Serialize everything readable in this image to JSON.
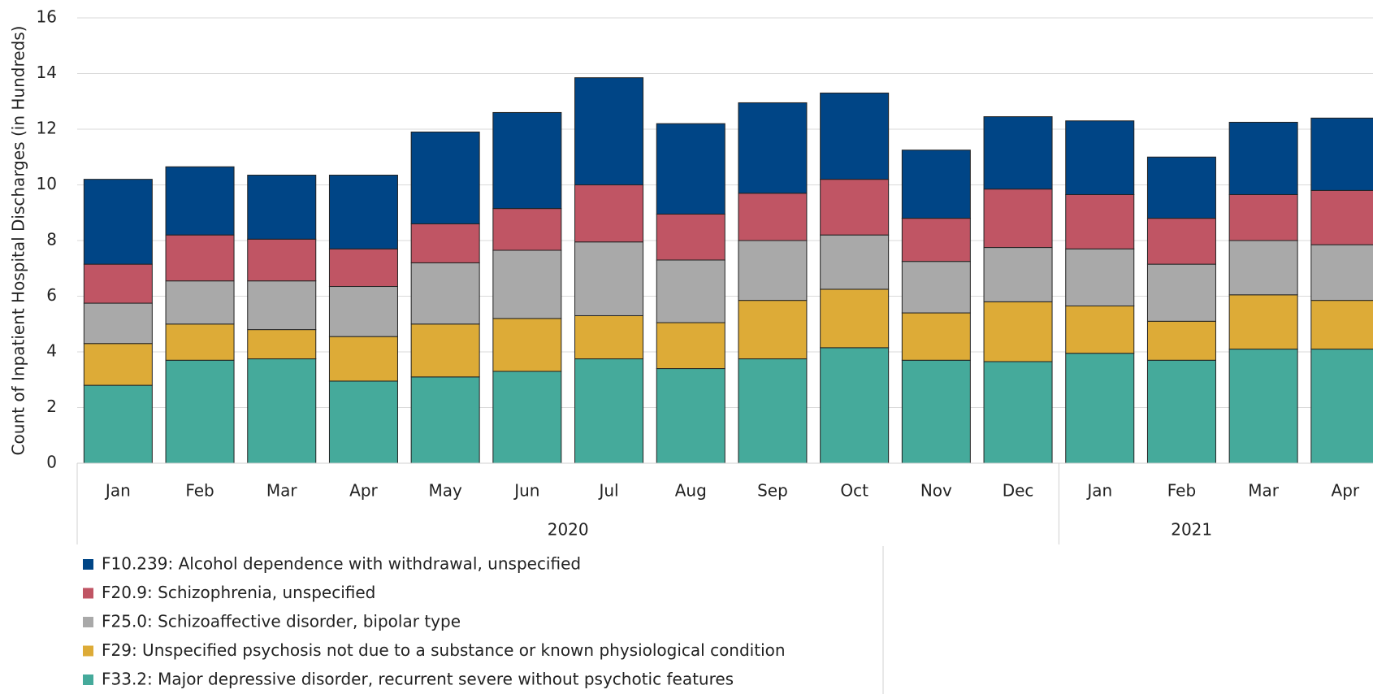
{
  "chart_data": {
    "type": "stacked_bar",
    "y_label": "Count of Inpatient Hospital Discharges (in Hundreds)",
    "categories": [
      "Jan",
      "Feb",
      "Mar",
      "Apr",
      "May",
      "Jun",
      "Jul",
      "Aug",
      "Sep",
      "Oct",
      "Nov",
      "Dec",
      "Jan",
      "Feb",
      "Mar",
      "Apr"
    ],
    "year_groups": [
      {
        "label": "2020",
        "span": 12
      },
      {
        "label": "2021",
        "span": 4
      }
    ],
    "ylim": [
      0,
      16
    ],
    "yticks": [
      0,
      2,
      4,
      6,
      8,
      10,
      12,
      14,
      16
    ],
    "grid": true,
    "series": [
      {
        "name": "F10.239: Alcohol dependence with withdrawal, unspecified",
        "color": "#004586",
        "values": [
          3.05,
          2.45,
          2.3,
          2.65,
          3.3,
          3.45,
          3.85,
          3.25,
          3.25,
          3.1,
          2.45,
          2.6,
          2.65,
          2.2,
          2.6,
          2.6
        ]
      },
      {
        "name": "F20.9: Schizophrenia, unspecified",
        "color": "#c05564",
        "values": [
          1.4,
          1.65,
          1.5,
          1.35,
          1.4,
          1.5,
          2.05,
          1.65,
          1.7,
          2.0,
          1.55,
          2.1,
          1.95,
          1.65,
          1.65,
          1.95
        ]
      },
      {
        "name": "F25.0: Schizoaffective disorder, bipolar type",
        "color": "#a9a9a9",
        "values": [
          1.45,
          1.55,
          1.75,
          1.8,
          2.2,
          2.45,
          2.65,
          2.25,
          2.15,
          1.95,
          1.85,
          1.95,
          2.05,
          2.05,
          1.95,
          2.0
        ]
      },
      {
        "name": "F29: Unspecified psychosis not due to a substance or known physiological condition",
        "color": "#ddab37",
        "values": [
          1.5,
          1.3,
          1.05,
          1.6,
          1.9,
          1.9,
          1.55,
          1.65,
          2.1,
          2.1,
          1.7,
          2.15,
          1.7,
          1.4,
          1.95,
          1.75
        ]
      },
      {
        "name": "F33.2: Major depressive disorder, recurrent severe without psychotic features",
        "color": "#45aa9b",
        "values": [
          2.8,
          3.7,
          3.75,
          2.95,
          3.1,
          3.3,
          3.75,
          3.4,
          3.75,
          4.15,
          3.7,
          3.65,
          3.95,
          3.7,
          4.1,
          4.1
        ]
      }
    ]
  }
}
